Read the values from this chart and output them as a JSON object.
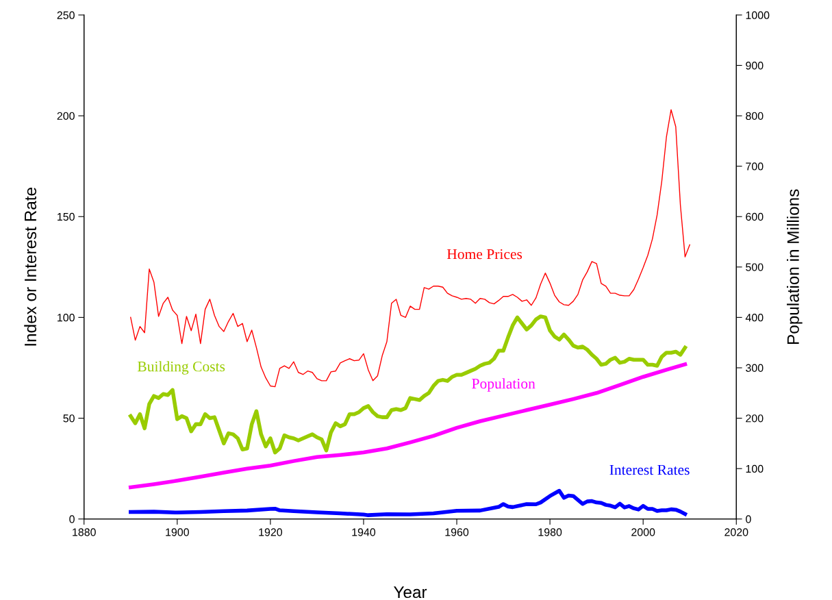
{
  "chart_data": {
    "type": "line",
    "xlabel": "Year",
    "ylabel": "Index or Interest Rate",
    "y2label": "Population in Millions",
    "xlim": [
      1880,
      2020
    ],
    "xticks": [
      1880,
      1900,
      1920,
      1940,
      1960,
      1980,
      2000,
      2020
    ],
    "ylim": [
      0,
      250
    ],
    "yticks": [
      0,
      50,
      100,
      150,
      200,
      250
    ],
    "y2lim": [
      0,
      1000
    ],
    "y2ticks": [
      0,
      100,
      200,
      300,
      400,
      500,
      600,
      700,
      800,
      900,
      1000
    ],
    "grid": false,
    "legend": false,
    "marker": "none",
    "line_style": "solid",
    "series": [
      {
        "name": "Home Prices",
        "color": "#ff0000",
        "x": [
          1890,
          1891,
          1892,
          1893,
          1894,
          1895,
          1896,
          1897,
          1898,
          1899,
          1900,
          1901,
          1902,
          1903,
          1904,
          1905,
          1906,
          1907,
          1908,
          1909,
          1910,
          1911,
          1912,
          1913,
          1914,
          1915,
          1916,
          1917,
          1918,
          1919,
          1920,
          1921,
          1922,
          1923,
          1924,
          1925,
          1926,
          1927,
          1928,
          1929,
          1930,
          1931,
          1932,
          1933,
          1934,
          1935,
          1936,
          1937,
          1938,
          1939,
          1940,
          1941,
          1942,
          1943,
          1944,
          1945,
          1946,
          1947,
          1948,
          1949,
          1950,
          1951,
          1952,
          1953,
          1954,
          1955,
          1956,
          1957,
          1958,
          1959,
          1960,
          1961,
          1962,
          1963,
          1964,
          1965,
          1966,
          1967,
          1968,
          1969,
          1970,
          1971,
          1972,
          1973,
          1974,
          1975,
          1976,
          1977,
          1978,
          1979,
          1980,
          1981,
          1982,
          1983,
          1984,
          1985,
          1986,
          1987,
          1988,
          1989,
          1990,
          1991,
          1992,
          1993,
          1994,
          1995,
          1996,
          1997,
          1998,
          1999,
          2000,
          2001,
          2002,
          2003,
          2004,
          2005,
          2006,
          2007,
          2008,
          2009,
          2010
        ],
        "values": [
          100,
          88.7,
          95.5,
          92.4,
          124,
          117.5,
          100.5,
          107,
          110,
          103.6,
          101,
          87,
          100.5,
          93.4,
          101.6,
          87,
          104,
          109,
          101,
          95.5,
          93,
          98,
          102,
          95.5,
          97,
          88,
          93.7,
          85,
          75.4,
          70,
          66,
          65.6,
          74.7,
          76,
          74.7,
          78,
          72.7,
          71.7,
          73.4,
          72.7,
          69.6,
          68.6,
          68.6,
          73,
          73.4,
          77.4,
          78.5,
          79.5,
          78.5,
          78.8,
          82,
          74,
          68.6,
          71,
          81,
          88,
          107,
          109,
          101,
          100,
          105.6,
          104,
          104,
          114.8,
          114,
          115.5,
          115.5,
          115,
          112,
          110.7,
          110,
          109,
          109.4,
          109,
          107,
          109.4,
          109,
          107.3,
          106.7,
          108.4,
          110.4,
          110.4,
          111.4,
          110,
          108,
          108.7,
          106,
          109.7,
          116.5,
          122,
          117,
          111,
          107.7,
          106.3,
          106,
          108,
          111.4,
          118.5,
          122.6,
          127.7,
          126.7,
          116.8,
          115.5,
          112,
          112,
          111,
          110.7,
          110.7,
          113.8,
          119,
          124.7,
          130.8,
          139,
          150.8,
          167.5,
          189.5,
          203,
          194.6,
          155.6,
          130,
          136
        ]
      },
      {
        "name": "Building Costs",
        "color": "#99cc00",
        "x": [
          1890,
          1891,
          1892,
          1893,
          1894,
          1895,
          1896,
          1897,
          1898,
          1899,
          1900,
          1901,
          1902,
          1903,
          1904,
          1905,
          1906,
          1907,
          1908,
          1909,
          1910,
          1911,
          1912,
          1913,
          1914,
          1915,
          1916,
          1917,
          1918,
          1919,
          1920,
          1921,
          1922,
          1923,
          1924,
          1925,
          1926,
          1927,
          1928,
          1929,
          1930,
          1931,
          1932,
          1933,
          1934,
          1935,
          1936,
          1937,
          1938,
          1939,
          1940,
          1941,
          1942,
          1943,
          1944,
          1945,
          1946,
          1947,
          1948,
          1949,
          1950,
          1951,
          1952,
          1953,
          1954,
          1955,
          1956,
          1957,
          1958,
          1959,
          1960,
          1961,
          1962,
          1963,
          1964,
          1965,
          1966,
          1967,
          1968,
          1969,
          1970,
          1971,
          1972,
          1973,
          1974,
          1975,
          1976,
          1977,
          1978,
          1979,
          1980,
          1981,
          1982,
          1983,
          1984,
          1985,
          1986,
          1987,
          1988,
          1989,
          1990,
          1991,
          1992,
          1993,
          1994,
          1995,
          1996,
          1997,
          1998,
          1999,
          2000,
          2001,
          2002,
          2003,
          2004,
          2005,
          2006,
          2007,
          2008,
          2009
        ],
        "values": [
          51,
          47.5,
          52,
          45,
          57,
          61,
          60,
          62,
          61.5,
          64,
          49.5,
          51,
          50,
          43.5,
          47,
          47,
          52,
          50,
          50.5,
          44,
          37.5,
          42.5,
          42,
          40,
          34.5,
          35,
          47,
          53.5,
          42,
          36,
          40,
          33,
          35,
          41.5,
          40.5,
          40,
          39,
          40,
          41,
          42,
          40.5,
          39.5,
          34,
          43,
          47.5,
          46,
          47,
          52,
          52,
          53,
          55,
          56,
          53,
          51,
          50.5,
          50.5,
          54,
          54.5,
          54,
          55,
          60,
          59.5,
          59,
          61,
          62.5,
          66,
          68.5,
          69,
          68.5,
          70.5,
          71.5,
          71.5,
          72.5,
          73.5,
          74.5,
          76,
          77,
          77.5,
          79.5,
          83.5,
          83.5,
          90,
          96,
          100,
          97,
          94,
          96,
          99,
          100.5,
          100,
          93.5,
          90.5,
          89,
          91.5,
          89,
          86,
          85,
          85.5,
          84,
          81.5,
          79.5,
          76.5,
          77,
          79,
          80,
          77.5,
          78,
          79.5,
          79,
          79,
          79,
          76.5,
          76.5,
          76,
          80.5,
          82.5,
          82.5,
          83,
          81.5,
          85
        ]
      },
      {
        "name": "Population",
        "color": "#ff00ff",
        "axis": "y2",
        "x": [
          1890,
          1895,
          1900,
          1905,
          1910,
          1915,
          1920,
          1925,
          1930,
          1935,
          1940,
          1945,
          1950,
          1955,
          1960,
          1965,
          1970,
          1975,
          1980,
          1985,
          1990,
          1995,
          2000,
          2005,
          2009
        ],
        "values": [
          63,
          69,
          76,
          84,
          92,
          100,
          106,
          115,
          123,
          127,
          132,
          140,
          152,
          165,
          181,
          194,
          205,
          216,
          227,
          238,
          250,
          266,
          282,
          296,
          307
        ]
      },
      {
        "name": "Interest Rates",
        "color": "#0000ff",
        "x": [
          1890,
          1895,
          1900,
          1905,
          1910,
          1915,
          1920,
          1921,
          1922,
          1925,
          1930,
          1935,
          1940,
          1941,
          1945,
          1950,
          1955,
          1960,
          1965,
          1969,
          1970,
          1971,
          1972,
          1975,
          1977,
          1978,
          1980,
          1982,
          1983,
          1984,
          1985,
          1987,
          1988,
          1989,
          1990,
          1991,
          1992,
          1993,
          1994,
          1995,
          1996,
          1997,
          1998,
          1999,
          2000,
          2001,
          2002,
          2003,
          2004,
          2005,
          2006,
          2007,
          2008,
          2009
        ],
        "values": [
          3.5,
          3.6,
          3.2,
          3.5,
          3.9,
          4.2,
          5.0,
          5.1,
          4.3,
          3.9,
          3.3,
          2.8,
          2.2,
          1.9,
          2.4,
          2.3,
          2.8,
          4.1,
          4.2,
          6.0,
          7.4,
          6.2,
          5.9,
          7.4,
          7.3,
          8.2,
          11.4,
          14.0,
          10.5,
          11.6,
          11.4,
          7.5,
          8.7,
          8.9,
          8.2,
          8.0,
          7.0,
          6.6,
          5.8,
          7.6,
          5.7,
          6.4,
          5.3,
          4.7,
          6.5,
          5.0,
          5.0,
          4.0,
          4.3,
          4.3,
          4.8,
          4.6,
          3.7,
          2.5
        ]
      }
    ]
  }
}
